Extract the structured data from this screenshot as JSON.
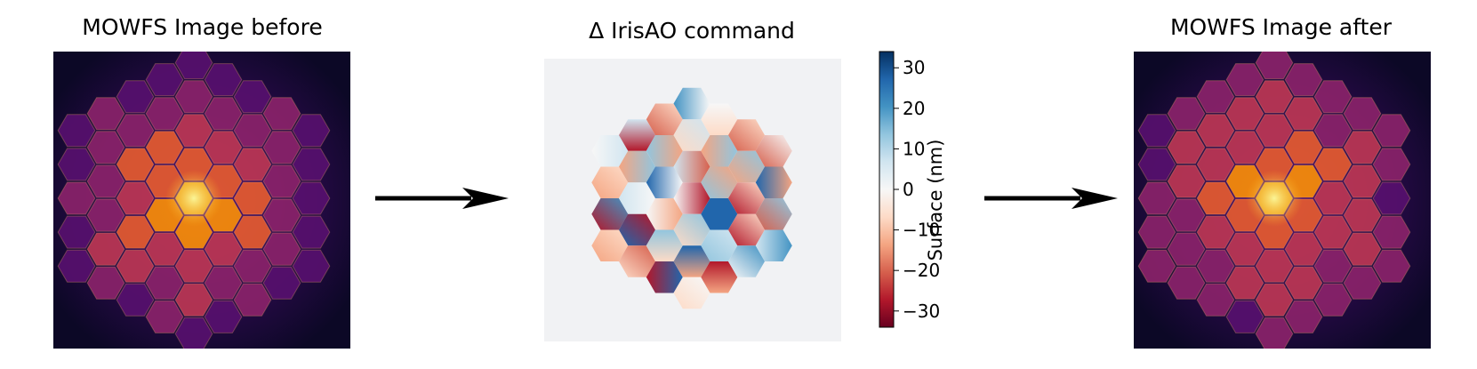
{
  "panels": {
    "before_title": "MOWFS Image before",
    "middle_title": "Δ IrisAO command",
    "after_title": "MOWFS Image after"
  },
  "colorbar": {
    "label": "Surface (nm)",
    "ticks": [
      {
        "value": 30,
        "label": "30"
      },
      {
        "value": 20,
        "label": "20"
      },
      {
        "value": 10,
        "label": "10"
      },
      {
        "value": 0,
        "label": "0"
      },
      {
        "value": -10,
        "label": "−10"
      },
      {
        "value": -20,
        "label": "−20"
      },
      {
        "value": -30,
        "label": "−30"
      }
    ],
    "range": [
      -34,
      34
    ],
    "colormap": "RdBu"
  },
  "arrows": [
    "before-to-command",
    "command-to-after"
  ],
  "colors": {
    "inferno_dark": "#0c0826",
    "inferno_purple": "#57106e",
    "inferno_orange": "#f98e09",
    "inferno_yellow": "#fcffa4",
    "rdbu_red": "#67001f",
    "rdbu_blue": "#053061",
    "rdbu_white": "#f7f7f7"
  }
}
